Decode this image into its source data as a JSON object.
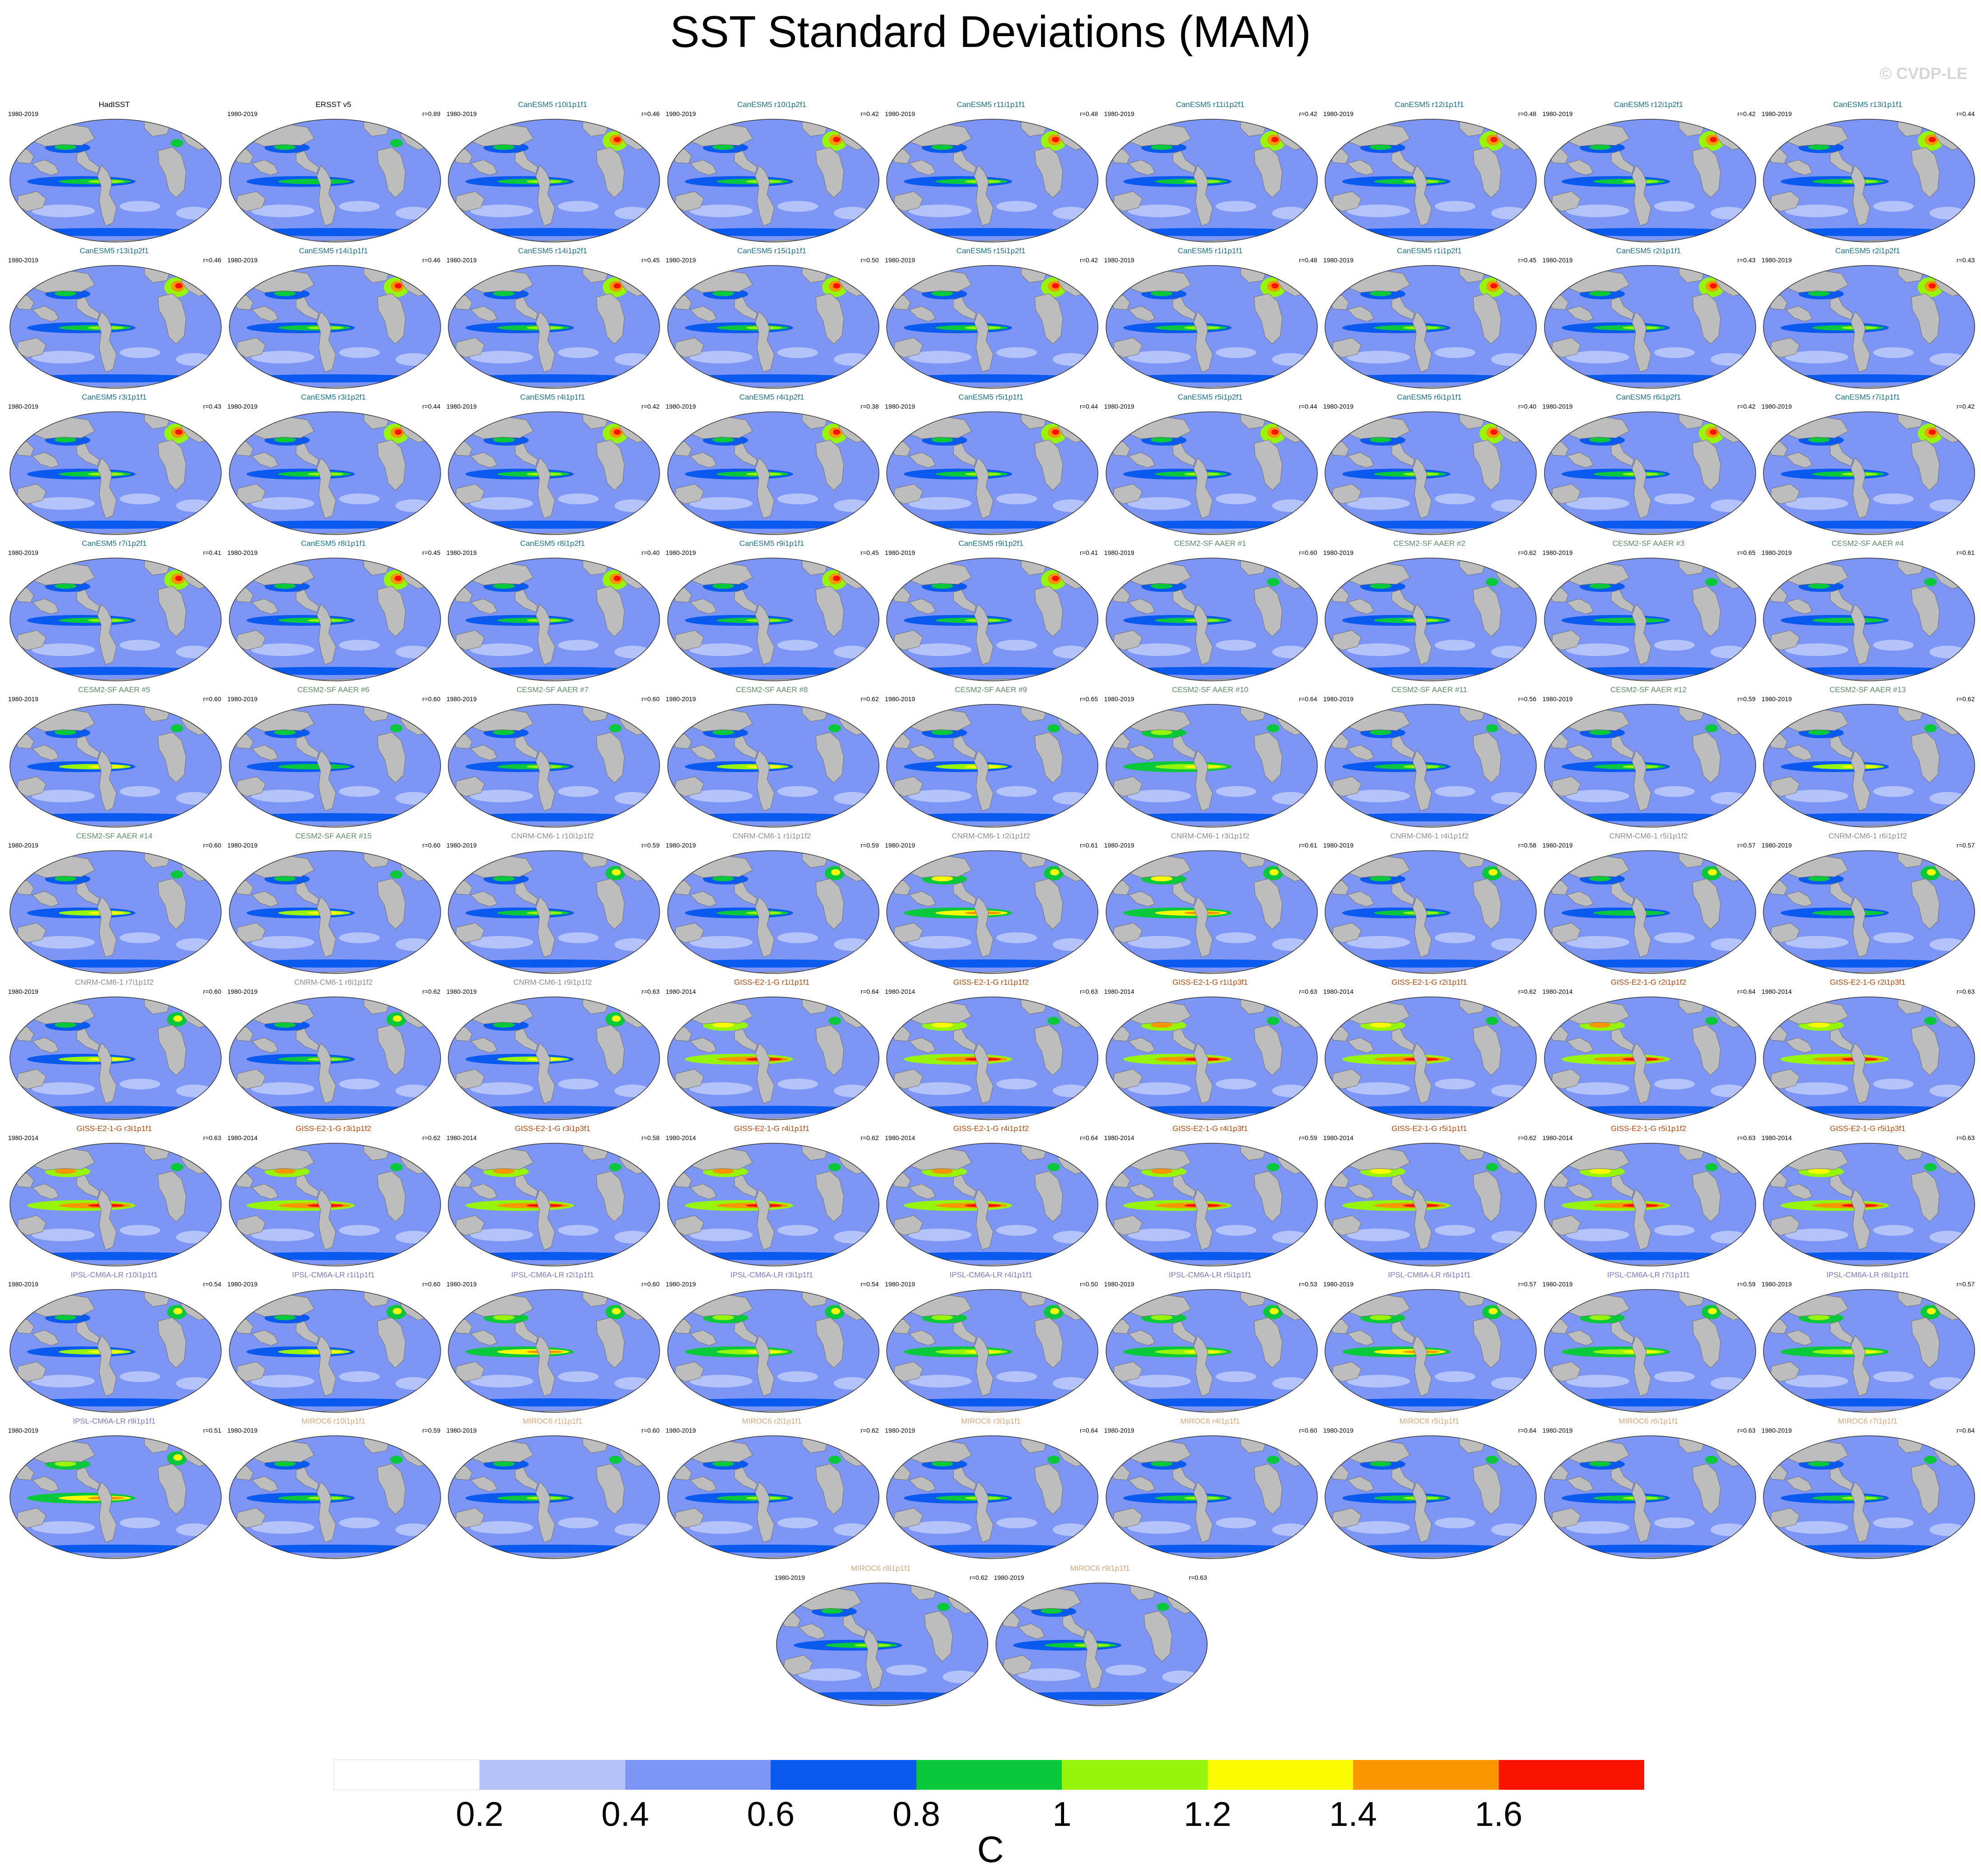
{
  "title": "SST Standard Deviations (MAM)",
  "watermark": "© CVDP-LE",
  "chart_data": {
    "type": "heatmap",
    "description_kind": "map-panel grid",
    "colorbar": {
      "unit": "C",
      "tick_labels": [
        "0.2",
        "0.4",
        "0.6",
        "0.8",
        "1",
        "1.2",
        "1.4",
        "1.6"
      ],
      "bins": [
        {
          "lo": 0.0,
          "hi": 0.2,
          "color": "#ffffff"
        },
        {
          "lo": 0.2,
          "hi": 0.4,
          "color": "#b4c4fa"
        },
        {
          "lo": 0.4,
          "hi": 0.6,
          "color": "#7d96f5"
        },
        {
          "lo": 0.6,
          "hi": 0.8,
          "color": "#0a5af0"
        },
        {
          "lo": 0.8,
          "hi": 1.0,
          "color": "#0ac83c"
        },
        {
          "lo": 1.0,
          "hi": 1.2,
          "color": "#96f50a"
        },
        {
          "lo": 1.2,
          "hi": 1.4,
          "color": "#fafa00"
        },
        {
          "lo": 1.4,
          "hi": 1.6,
          "color": "#fa9600"
        },
        {
          "lo": 1.6,
          "hi": 1.8,
          "color": "#fa1400"
        }
      ]
    },
    "model_colors": {
      "obs": "#000000",
      "CanESM5": "#1a6e8c",
      "CESM2": "#5a8c64",
      "CNRM": "#8c8c8c",
      "GISS": "#b4460a",
      "IPSL": "#7878c8",
      "MIROC": "#dca578"
    },
    "panels": [
      {
        "title": "HadISST",
        "period": "1980-2019",
        "r": "",
        "group": "obs",
        "intensity": 1.0
      },
      {
        "title": "ERSST v5",
        "period": "1980-2019",
        "r": "r=0.89",
        "group": "obs",
        "intensity": 0.9
      },
      {
        "title": "CanESM5 r10i1p1f1",
        "period": "1980-2019",
        "r": "r=0.46",
        "group": "CanESM5",
        "intensity": 1.0
      },
      {
        "title": "CanESM5 r10i1p2f1",
        "period": "1980-2019",
        "r": "r=0.42",
        "group": "CanESM5",
        "intensity": 1.0
      },
      {
        "title": "CanESM5 r11i1p1f1",
        "period": "1980-2019",
        "r": "r=0.48",
        "group": "CanESM5",
        "intensity": 1.0
      },
      {
        "title": "CanESM5 r11i1p2f1",
        "period": "1980-2019",
        "r": "r=0.42",
        "group": "CanESM5",
        "intensity": 1.0
      },
      {
        "title": "CanESM5 r12i1p1f1",
        "period": "1980-2019",
        "r": "r=0.48",
        "group": "CanESM5",
        "intensity": 1.0
      },
      {
        "title": "CanESM5 r12i1p2f1",
        "period": "1980-2019",
        "r": "r=0.42",
        "group": "CanESM5",
        "intensity": 1.0
      },
      {
        "title": "CanESM5 r13i1p1f1",
        "period": "1980-2019",
        "r": "r=0.44",
        "group": "CanESM5",
        "intensity": 1.0
      },
      {
        "title": "CanESM5 r13i1p2f1",
        "period": "1980-2019",
        "r": "r=0.46",
        "group": "CanESM5",
        "intensity": 1.0
      },
      {
        "title": "CanESM5 r14i1p1f1",
        "period": "1980-2019",
        "r": "r=0.46",
        "group": "CanESM5",
        "intensity": 1.0
      },
      {
        "title": "CanESM5 r14i1p2f1",
        "period": "1980-2019",
        "r": "r=0.45",
        "group": "CanESM5",
        "intensity": 1.0
      },
      {
        "title": "CanESM5 r15i1p1f1",
        "period": "1980-2019",
        "r": "r=0.50",
        "group": "CanESM5",
        "intensity": 1.0
      },
      {
        "title": "CanESM5 r15i1p2f1",
        "period": "1980-2019",
        "r": "r=0.42",
        "group": "CanESM5",
        "intensity": 1.0
      },
      {
        "title": "CanESM5 r1i1p1f1",
        "period": "1980-2019",
        "r": "r=0.48",
        "group": "CanESM5",
        "intensity": 1.0
      },
      {
        "title": "CanESM5 r1i1p2f1",
        "period": "1980-2019",
        "r": "r=0.45",
        "group": "CanESM5",
        "intensity": 1.0
      },
      {
        "title": "CanESM5 r2i1p1f1",
        "period": "1980-2019",
        "r": "r=0.43",
        "group": "CanESM5",
        "intensity": 1.0
      },
      {
        "title": "CanESM5 r2i1p2f1",
        "period": "1980-2019",
        "r": "r=0.43",
        "group": "CanESM5",
        "intensity": 1.0
      },
      {
        "title": "CanESM5 r3i1p1f1",
        "period": "1980-2019",
        "r": "r=0.43",
        "group": "CanESM5",
        "intensity": 1.0
      },
      {
        "title": "CanESM5 r3i1p2f1",
        "period": "1980-2019",
        "r": "r=0.44",
        "group": "CanESM5",
        "intensity": 1.0
      },
      {
        "title": "CanESM5 r4i1p1f1",
        "period": "1980-2019",
        "r": "r=0.42",
        "group": "CanESM5",
        "intensity": 1.0
      },
      {
        "title": "CanESM5 r4i1p2f1",
        "period": "1980-2019",
        "r": "r=0.38",
        "group": "CanESM5",
        "intensity": 1.0
      },
      {
        "title": "CanESM5 r5i1p1f1",
        "period": "1980-2019",
        "r": "r=0.44",
        "group": "CanESM5",
        "intensity": 1.0
      },
      {
        "title": "CanESM5 r5i1p2f1",
        "period": "1980-2019",
        "r": "r=0.44",
        "group": "CanESM5",
        "intensity": 1.0
      },
      {
        "title": "CanESM5 r6i1p1f1",
        "period": "1980-2019",
        "r": "r=0.40",
        "group": "CanESM5",
        "intensity": 1.0
      },
      {
        "title": "CanESM5 r6i1p2f1",
        "period": "1980-2019",
        "r": "r=0.42",
        "group": "CanESM5",
        "intensity": 1.0
      },
      {
        "title": "CanESM5 r7i1p1f1",
        "period": "1980-2019",
        "r": "r=0.42",
        "group": "CanESM5",
        "intensity": 1.0
      },
      {
        "title": "CanESM5 r7i1p2f1",
        "period": "1980-2019",
        "r": "r=0.41",
        "group": "CanESM5",
        "intensity": 1.0
      },
      {
        "title": "CanESM5 r8i1p1f1",
        "period": "1980-2019",
        "r": "r=0.45",
        "group": "CanESM5",
        "intensity": 1.0
      },
      {
        "title": "CanESM5 r8i1p2f1",
        "period": "1980-2019",
        "r": "r=0.40",
        "group": "CanESM5",
        "intensity": 1.0
      },
      {
        "title": "CanESM5 r9i1p1f1",
        "period": "1980-2019",
        "r": "r=0.45",
        "group": "CanESM5",
        "intensity": 1.0
      },
      {
        "title": "CanESM5 r9i1p2f1",
        "period": "1980-2019",
        "r": "r=0.41",
        "group": "CanESM5",
        "intensity": 1.0
      },
      {
        "title": "CESM2-SF AAER #1",
        "period": "1980-2019",
        "r": "r=0.60",
        "group": "CESM2",
        "intensity": 1.0
      },
      {
        "title": "CESM2-SF AAER #2",
        "period": "1980-2019",
        "r": "r=0.62",
        "group": "CESM2",
        "intensity": 1.0
      },
      {
        "title": "CESM2-SF AAER #3",
        "period": "1980-2019",
        "r": "r=0.65",
        "group": "CESM2",
        "intensity": 0.9
      },
      {
        "title": "CESM2-SF AAER #4",
        "period": "1980-2019",
        "r": "r=0.61",
        "group": "CESM2",
        "intensity": 0.9
      },
      {
        "title": "CESM2-SF AAER #5",
        "period": "1980-2019",
        "r": "r=0.60",
        "group": "CESM2",
        "intensity": 1.1
      },
      {
        "title": "CESM2-SF AAER #6",
        "period": "1980-2019",
        "r": "r=0.60",
        "group": "CESM2",
        "intensity": 0.9
      },
      {
        "title": "CESM2-SF AAER #7",
        "period": "1980-2019",
        "r": "r=0.60",
        "group": "CESM2",
        "intensity": 1.0
      },
      {
        "title": "CESM2-SF AAER #8",
        "period": "1980-2019",
        "r": "r=0.62",
        "group": "CESM2",
        "intensity": 1.1
      },
      {
        "title": "CESM2-SF AAER #9",
        "period": "1980-2019",
        "r": "r=0.65",
        "group": "CESM2",
        "intensity": 1.1
      },
      {
        "title": "CESM2-SF AAER #10",
        "period": "1980-2019",
        "r": "r=0.64",
        "group": "CESM2",
        "intensity": 1.2
      },
      {
        "title": "CESM2-SF AAER #11",
        "period": "1980-2019",
        "r": "r=0.56",
        "group": "CESM2",
        "intensity": 1.0
      },
      {
        "title": "CESM2-SF AAER #12",
        "period": "1980-2019",
        "r": "r=0.59",
        "group": "CESM2",
        "intensity": 1.0
      },
      {
        "title": "CESM2-SF AAER #13",
        "period": "1980-2019",
        "r": "r=0.62",
        "group": "CESM2",
        "intensity": 1.1
      },
      {
        "title": "CESM2-SF AAER #14",
        "period": "1980-2019",
        "r": "r=0.60",
        "group": "CESM2",
        "intensity": 1.1
      },
      {
        "title": "CESM2-SF AAER #15",
        "period": "1980-2019",
        "r": "r=0.60",
        "group": "CESM2",
        "intensity": 1.1
      },
      {
        "title": "CNRM-CM6-1 r10i1p1f2",
        "period": "1980-2019",
        "r": "r=0.59",
        "group": "CNRM",
        "intensity": 1.0
      },
      {
        "title": "CNRM-CM6-1 r1i1p1f2",
        "period": "1980-2019",
        "r": "r=0.59",
        "group": "CNRM",
        "intensity": 1.0
      },
      {
        "title": "CNRM-CM6-1 r2i1p1f2",
        "period": "1980-2019",
        "r": "r=0.61",
        "group": "CNRM",
        "intensity": 1.4
      },
      {
        "title": "CNRM-CM6-1 r3i1p1f2",
        "period": "1980-2019",
        "r": "r=0.61",
        "group": "CNRM",
        "intensity": 1.4
      },
      {
        "title": "CNRM-CM6-1 r4i1p1f2",
        "period": "1980-2019",
        "r": "r=0.58",
        "group": "CNRM",
        "intensity": 1.0
      },
      {
        "title": "CNRM-CM6-1 r5i1p1f2",
        "period": "1980-2019",
        "r": "r=0.57",
        "group": "CNRM",
        "intensity": 0.9
      },
      {
        "title": "CNRM-CM6-1 r6i1p1f2",
        "period": "1980-2019",
        "r": "r=0.57",
        "group": "CNRM",
        "intensity": 0.9
      },
      {
        "title": "CNRM-CM6-1 r7i1p1f2",
        "period": "1980-2019",
        "r": "r=0.60",
        "group": "CNRM",
        "intensity": 1.1
      },
      {
        "title": "CNRM-CM6-1 r8i1p1f2",
        "period": "1980-2019",
        "r": "r=0.62",
        "group": "CNRM",
        "intensity": 1.0
      },
      {
        "title": "CNRM-CM6-1 r9i1p1f2",
        "period": "1980-2019",
        "r": "r=0.63",
        "group": "CNRM",
        "intensity": 1.1
      },
      {
        "title": "GISS-E2-1-G r1i1p1f1",
        "period": "1980-2014",
        "r": "r=0.64",
        "group": "GISS",
        "intensity": 1.5
      },
      {
        "title": "GISS-E2-1-G r1i1p1f2",
        "period": "1980-2014",
        "r": "r=0.63",
        "group": "GISS",
        "intensity": 1.5
      },
      {
        "title": "GISS-E2-1-G r1i1p3f1",
        "period": "1980-2014",
        "r": "r=0.63",
        "group": "GISS",
        "intensity": 1.6
      },
      {
        "title": "GISS-E2-1-G r2i1p1f1",
        "period": "1980-2014",
        "r": "r=0.62",
        "group": "GISS",
        "intensity": 1.5
      },
      {
        "title": "GISS-E2-1-G r2i1p1f2",
        "period": "1980-2014",
        "r": "r=0.64",
        "group": "GISS",
        "intensity": 1.6
      },
      {
        "title": "GISS-E2-1-G r2i1p3f1",
        "period": "1980-2014",
        "r": "r=0.63",
        "group": "GISS",
        "intensity": 1.5
      },
      {
        "title": "GISS-E2-1-G r3i1p1f1",
        "period": "1980-2014",
        "r": "r=0.63",
        "group": "GISS",
        "intensity": 1.6
      },
      {
        "title": "GISS-E2-1-G r3i1p1f2",
        "period": "1980-2014",
        "r": "r=0.62",
        "group": "GISS",
        "intensity": 1.6
      },
      {
        "title": "GISS-E2-1-G r3i1p3f1",
        "period": "1980-2014",
        "r": "r=0.58",
        "group": "GISS",
        "intensity": 1.6
      },
      {
        "title": "GISS-E2-1-G r4i1p1f1",
        "period": "1980-2014",
        "r": "r=0.62",
        "group": "GISS",
        "intensity": 1.6
      },
      {
        "title": "GISS-E2-1-G r4i1p1f2",
        "period": "1980-2014",
        "r": "r=0.64",
        "group": "GISS",
        "intensity": 1.6
      },
      {
        "title": "GISS-E2-1-G r4i1p3f1",
        "period": "1980-2014",
        "r": "r=0.59",
        "group": "GISS",
        "intensity": 1.6
      },
      {
        "title": "GISS-E2-1-G r5i1p1f1",
        "period": "1980-2014",
        "r": "r=0.62",
        "group": "GISS",
        "intensity": 1.5
      },
      {
        "title": "GISS-E2-1-G r5i1p1f2",
        "period": "1980-2014",
        "r": "r=0.63",
        "group": "GISS",
        "intensity": 1.5
      },
      {
        "title": "GISS-E2-1-G r5i1p3f1",
        "period": "1980-2014",
        "r": "r=0.63",
        "group": "GISS",
        "intensity": 1.5
      },
      {
        "title": "IPSL-CM6A-LR r10i1p1f1",
        "period": "1980-2019",
        "r": "r=0.54",
        "group": "IPSL",
        "intensity": 1.1
      },
      {
        "title": "IPSL-CM6A-LR r1i1p1f1",
        "period": "1980-2019",
        "r": "r=0.60",
        "group": "IPSL",
        "intensity": 1.1
      },
      {
        "title": "IPSL-CM6A-LR r2i1p1f1",
        "period": "1980-2019",
        "r": "r=0.60",
        "group": "IPSL",
        "intensity": 1.3
      },
      {
        "title": "IPSL-CM6A-LR r3i1p1f1",
        "period": "1980-2019",
        "r": "r=0.54",
        "group": "IPSL",
        "intensity": 1.2
      },
      {
        "title": "IPSL-CM6A-LR r4i1p1f1",
        "period": "1980-2019",
        "r": "r=0.50",
        "group": "IPSL",
        "intensity": 1.2
      },
      {
        "title": "IPSL-CM6A-LR r5i1p1f1",
        "period": "1980-2019",
        "r": "r=0.53",
        "group": "IPSL",
        "intensity": 1.2
      },
      {
        "title": "IPSL-CM6A-LR r6i1p1f1",
        "period": "1980-2019",
        "r": "r=0.57",
        "group": "IPSL",
        "intensity": 1.3
      },
      {
        "title": "IPSL-CM6A-LR r7i1p1f1",
        "period": "1980-2019",
        "r": "r=0.59",
        "group": "IPSL",
        "intensity": 1.2
      },
      {
        "title": "IPSL-CM6A-LR r8i1p1f1",
        "period": "1980-2019",
        "r": "r=0.57",
        "group": "IPSL",
        "intensity": 1.2
      },
      {
        "title": "IPSL-CM6A-LR r9i1p1f1",
        "period": "1980-2019",
        "r": "r=0.51",
        "group": "IPSL",
        "intensity": 1.3
      },
      {
        "title": "MIROC6 r10i1p1f1",
        "period": "1980-2019",
        "r": "r=0.59",
        "group": "MIROC",
        "intensity": 1.0
      },
      {
        "title": "MIROC6 r1i1p1f1",
        "period": "1980-2019",
        "r": "r=0.60",
        "group": "MIROC",
        "intensity": 1.0
      },
      {
        "title": "MIROC6 r2i1p1f1",
        "period": "1980-2019",
        "r": "r=0.62",
        "group": "MIROC",
        "intensity": 1.0
      },
      {
        "title": "MIROC6 r3i1p1f1",
        "period": "1980-2019",
        "r": "r=0.64",
        "group": "MIROC",
        "intensity": 1.0
      },
      {
        "title": "MIROC6 r4i1p1f1",
        "period": "1980-2019",
        "r": "r=0.60",
        "group": "MIROC",
        "intensity": 1.0
      },
      {
        "title": "MIROC6 r5i1p1f1",
        "period": "1980-2019",
        "r": "r=0.64",
        "group": "MIROC",
        "intensity": 1.0
      },
      {
        "title": "MIROC6 r6i1p1f1",
        "period": "1980-2019",
        "r": "r=0.63",
        "group": "MIROC",
        "intensity": 1.0
      },
      {
        "title": "MIROC6 r7i1p1f1",
        "period": "1980-2019",
        "r": "r=0.64",
        "group": "MIROC",
        "intensity": 1.0
      },
      {
        "title": "MIROC6 r8i1p1f1",
        "period": "1980-2019",
        "r": "r=0.62",
        "group": "MIROC",
        "intensity": 1.0
      },
      {
        "title": "MIROC6 r9i1p1f1",
        "period": "1980-2019",
        "r": "r=0.63",
        "group": "MIROC",
        "intensity": 1.0
      }
    ]
  }
}
